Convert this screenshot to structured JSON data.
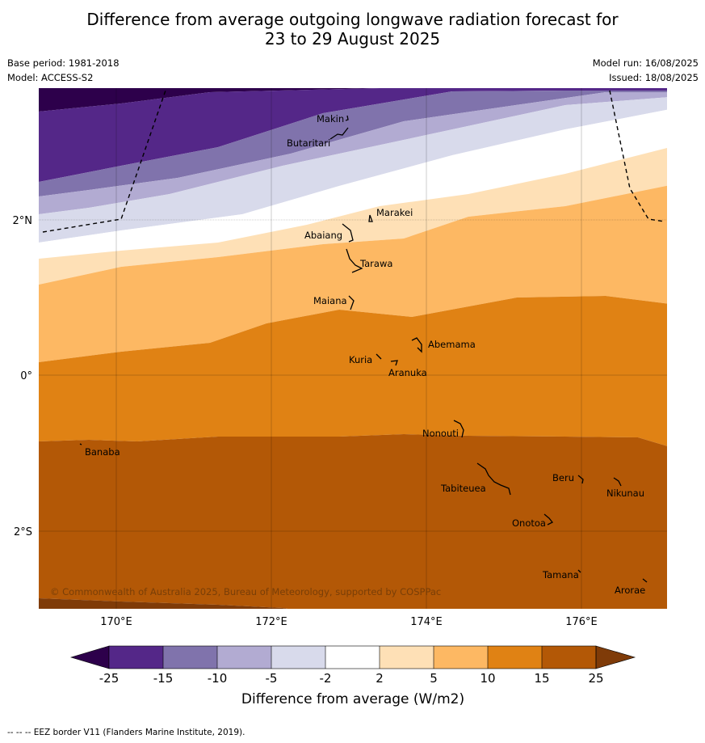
{
  "title_line1": "Difference from average outgoing longwave radiation forecast for",
  "title_line2": "23 to 29 August 2025",
  "base_period": "Base period: 1981-2018",
  "model": "Model: ACCESS-S2",
  "model_run": "Model run: 16/08/2025",
  "issued": "Issued: 18/08/2025",
  "copyright": "© Commonwealth of Australia 2025, Bureau of Meteorology, supported by COSPPac",
  "lon_labels": [
    "170°E",
    "172°E",
    "174°E",
    "176°E"
  ],
  "lat_labels": [
    "2°N",
    "0°",
    "2°S"
  ],
  "places": {
    "makin": "Makin",
    "butaritari": "Butaritari",
    "marakei": "Marakei",
    "abaiang": "Abaiang",
    "tarawa": "Tarawa",
    "maiana": "Maiana",
    "abemama": "Abemama",
    "kuria": "Kuria",
    "aranuka": "Aranuka",
    "nonouti": "Nonouti",
    "banaba": "Banaba",
    "beru": "Beru",
    "tabiteuea": "Tabiteuea",
    "nikunau": "Nikunau",
    "onotoa": "Onotoa",
    "tamana": "Tamana",
    "arorae": "Arorae"
  },
  "legend": {
    "ticks": [
      "-25",
      "-15",
      "-10",
      "-5",
      "-2",
      "2",
      "5",
      "10",
      "15",
      "25"
    ],
    "title": "Difference from average (W/m2)",
    "colors": [
      "#2d004b",
      "#542788",
      "#8073ac",
      "#b2abd2",
      "#d8daeb",
      "#ffffff",
      "#fee0b6",
      "#fdb863",
      "#e08214",
      "#b35806",
      "#7f3b08"
    ]
  },
  "footer": "-- -- -- EEZ border V11 (Flanders Marine Institute, 2019)."
}
